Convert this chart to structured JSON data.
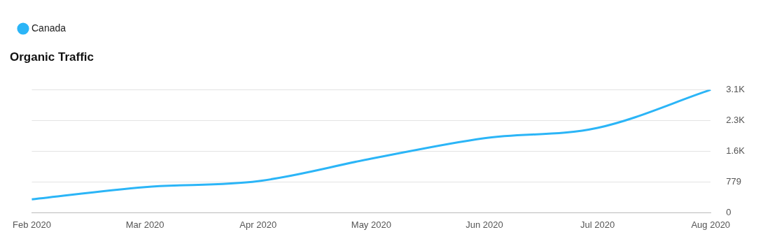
{
  "chart_data": {
    "type": "line",
    "title": "Organic Traffic",
    "categories": [
      "Feb 2020",
      "Mar 2020",
      "Apr 2020",
      "May 2020",
      "Jun 2020",
      "Jul 2020",
      "Aug 2020"
    ],
    "series": [
      {
        "name": "Canada",
        "color": "#2bb5f7",
        "values": [
          340,
          650,
          800,
          1370,
          1890,
          2150,
          3116
        ]
      }
    ],
    "ylim": [
      0,
      3116
    ],
    "yticks": [
      0,
      779,
      {
        "value": 1558,
        "label": "1.6K"
      },
      {
        "value": 2337,
        "label": "2.3K"
      },
      {
        "value": 3116,
        "label": "3.1K"
      }
    ],
    "grid": "y",
    "legend": "top left",
    "marker": "none"
  }
}
